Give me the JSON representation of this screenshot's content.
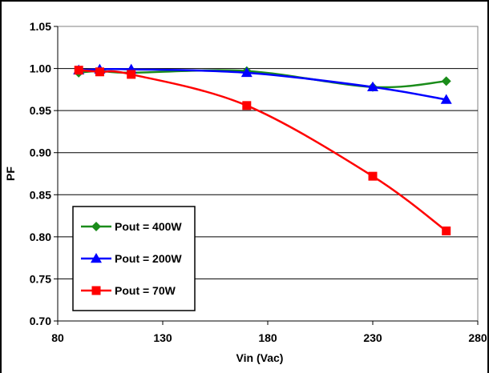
{
  "chart_data": {
    "type": "line",
    "title": "",
    "xlabel": "Vin (Vac)",
    "ylabel": "PF",
    "xlim": [
      80,
      280
    ],
    "ylim": [
      0.7,
      1.05
    ],
    "xticks": [
      "80",
      "130",
      "180",
      "230",
      "280"
    ],
    "yticks": [
      "0.70",
      "0.75",
      "0.80",
      "0.85",
      "0.90",
      "0.95",
      "1.00",
      "1.05"
    ],
    "grid": "horizontal",
    "legend_position": "bottom-left",
    "series": [
      {
        "name": "Pout = 400W",
        "color": "#1a8c1a",
        "marker": "diamond",
        "x": [
          90,
          100,
          115,
          170,
          230,
          265
        ],
        "y": [
          0.995,
          0.997,
          0.995,
          0.997,
          0.978,
          0.985
        ]
      },
      {
        "name": "Pout = 200W",
        "color": "#0000ff",
        "marker": "triangle",
        "x": [
          90,
          100,
          115,
          170,
          230,
          265
        ],
        "y": [
          0.998,
          0.999,
          0.999,
          0.995,
          0.978,
          0.963
        ]
      },
      {
        "name": "Pout = 70W",
        "color": "#ff0000",
        "marker": "square",
        "x": [
          90,
          100,
          115,
          170,
          230,
          265
        ],
        "y": [
          0.998,
          0.996,
          0.993,
          0.956,
          0.872,
          0.807
        ]
      }
    ]
  }
}
